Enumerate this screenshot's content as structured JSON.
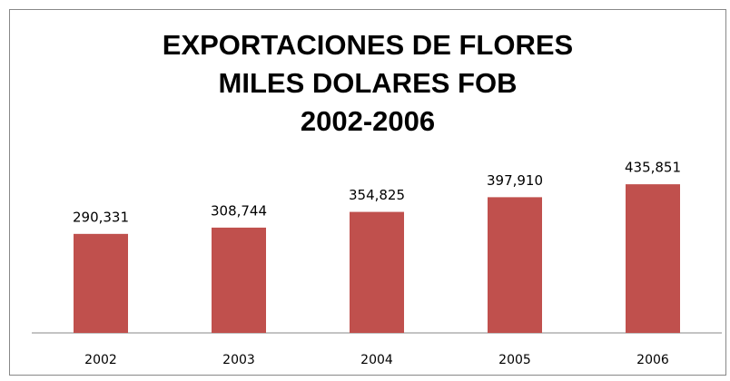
{
  "chart_data": {
    "type": "bar",
    "title": [
      "EXPORTACIONES DE FLORES",
      "MILES DOLARES FOB",
      "2002-2006"
    ],
    "categories": [
      "2002",
      "2003",
      "2004",
      "2005",
      "2006"
    ],
    "values": [
      290331,
      308744,
      354825,
      397910,
      435851
    ],
    "value_labels": [
      "290,331",
      "308,744",
      "354,825",
      "397,910",
      "435,851"
    ],
    "color": "#c0504d",
    "ylim": [
      0,
      500000
    ]
  }
}
